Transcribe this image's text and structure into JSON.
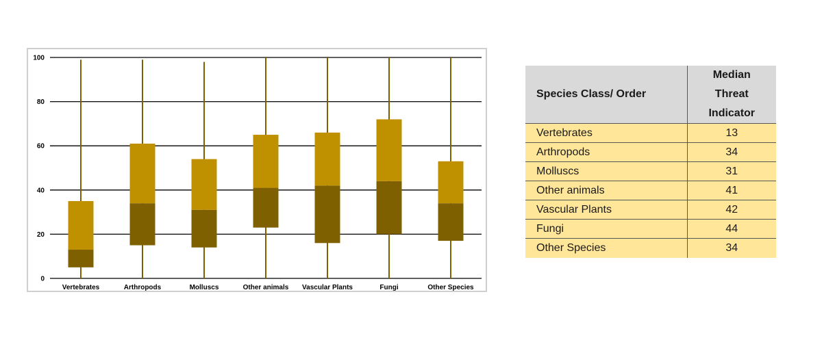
{
  "chart_data": {
    "type": "box",
    "title": "",
    "xlabel": "",
    "ylabel": "",
    "ylim": [
      0,
      100
    ],
    "yticks": [
      0,
      20,
      40,
      60,
      80,
      100
    ],
    "grid": true,
    "categories": [
      "Vertebrates",
      "Arthropods",
      "Molluscs",
      "Other animals",
      "Vascular Plants",
      "Fungi",
      "Other Species"
    ],
    "boxes": [
      {
        "min": 0,
        "q1": 5,
        "median": 13,
        "q3": 35,
        "max": 99
      },
      {
        "min": 0,
        "q1": 15,
        "median": 34,
        "q3": 61,
        "max": 99
      },
      {
        "min": 0,
        "q1": 14,
        "median": 31,
        "q3": 54,
        "max": 98
      },
      {
        "min": 0,
        "q1": 23,
        "median": 41,
        "q3": 65,
        "max": 100
      },
      {
        "min": 0,
        "q1": 16,
        "median": 42,
        "q3": 66,
        "max": 100
      },
      {
        "min": 0,
        "q1": 20,
        "median": 44,
        "q3": 72,
        "max": 100
      },
      {
        "min": 0,
        "q1": 17,
        "median": 34,
        "q3": 53,
        "max": 100
      }
    ],
    "colors": {
      "upper_box": "#bf9000",
      "lower_box": "#7f6000",
      "whisker": "#7f6000",
      "grid": "#000000"
    }
  },
  "table": {
    "header_col1": "Species Class/ Order",
    "header_col2": [
      "Median",
      "Threat",
      "Indicator"
    ],
    "rows": [
      {
        "name": "Vertebrates",
        "value": "13"
      },
      {
        "name": "Arthropods",
        "value": "34"
      },
      {
        "name": "Molluscs",
        "value": "31"
      },
      {
        "name": "Other animals",
        "value": "41"
      },
      {
        "name": "Vascular Plants",
        "value": "42"
      },
      {
        "name": "Fungi",
        "value": "44"
      },
      {
        "name": "Other Species",
        "value": "34"
      }
    ],
    "colors": {
      "header_bg": "#d9d9d9",
      "row_bg": "#ffe699"
    }
  }
}
